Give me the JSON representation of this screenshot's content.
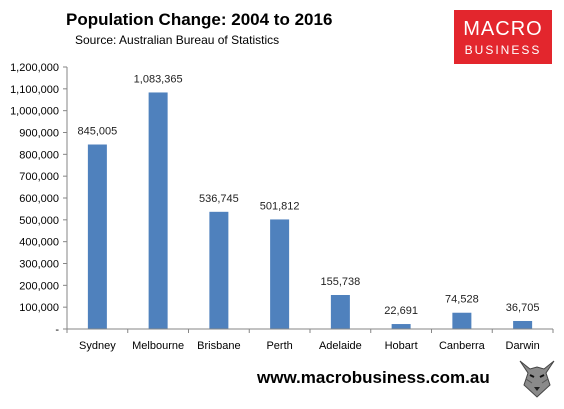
{
  "header": {
    "title": "Population Change: 2004 to 2016",
    "subtitle": "Source: Australian Bureau of Statistics"
  },
  "logo": {
    "line1": "MACRO",
    "line2": "BUSINESS"
  },
  "footer": {
    "url": "www.macrobusiness.com.au"
  },
  "colors": {
    "bar": "#4f81bd",
    "logo_bg": "#e3262d"
  },
  "chart_data": {
    "type": "bar",
    "title": "Population Change: 2004 to 2016",
    "categories": [
      "Sydney",
      "Melbourne",
      "Brisbane",
      "Perth",
      "Adelaide",
      "Hobart",
      "Canberra",
      "Darwin"
    ],
    "values": [
      845005,
      1083365,
      536745,
      501812,
      155738,
      22691,
      74528,
      36705
    ],
    "data_labels": [
      "845,005",
      "1,083,365",
      "536,745",
      "501,812",
      "155,738",
      "22,691",
      "74,528",
      "36,705"
    ],
    "yticks": [
      "-",
      "100,000",
      "200,000",
      "300,000",
      "400,000",
      "500,000",
      "600,000",
      "700,000",
      "800,000",
      "900,000",
      "1,000,000",
      "1,100,000",
      "1,200,000"
    ],
    "ylim": [
      0,
      1200000
    ],
    "xlabel": "",
    "ylabel": "",
    "grid": false,
    "legend": "none"
  }
}
